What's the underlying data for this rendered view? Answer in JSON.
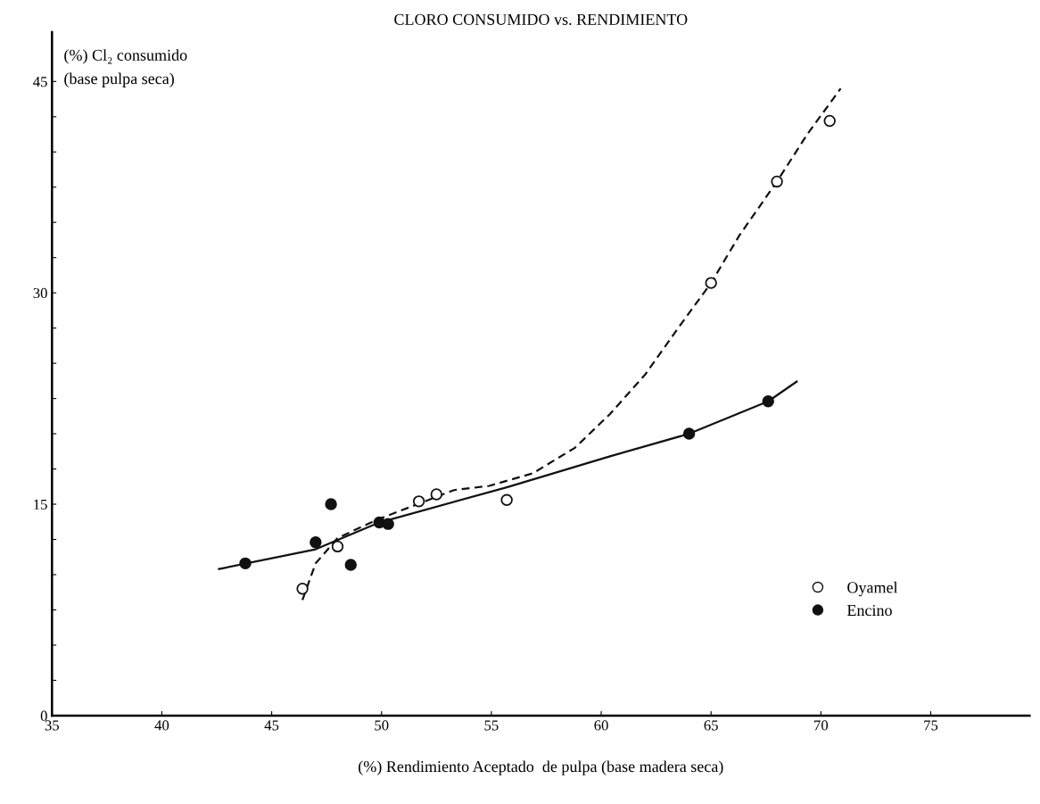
{
  "chart_data": {
    "type": "scatter",
    "title": "CLORO CONSUMIDO vs. RENDIMIENTO",
    "xlabel": "(%) Rendimiento Aceptado  de pulpa (base madera seca)",
    "ylabel": "(%) Cl₂ consumido\n(base pulpa seca)",
    "xlim": [
      35,
      79.5
    ],
    "xticks": [
      35,
      40,
      45,
      50,
      55,
      60,
      65,
      70,
      75
    ],
    "ylim": [
      0,
      48.5
    ],
    "yticks": [
      0,
      {
        "value": 2.5,
        "label": null
      },
      {
        "value": 5,
        "label": null
      },
      {
        "value": 7.5,
        "label": null
      },
      {
        "value": 10,
        "label": null
      },
      {
        "value": 12.5,
        "label": null
      },
      15,
      {
        "value": 17.5,
        "label": null
      },
      {
        "value": 20,
        "label": null
      },
      {
        "value": 22.5,
        "label": null
      },
      {
        "value": 25,
        "label": null
      },
      {
        "value": 27.5,
        "label": null
      },
      30,
      {
        "value": 32.5,
        "label": null
      },
      {
        "value": 35,
        "label": null
      },
      {
        "value": 37.5,
        "label": null
      },
      {
        "value": 40,
        "label": null
      },
      {
        "value": 42.5,
        "label": null
      },
      45
    ],
    "grid": false,
    "legend": "lower right",
    "marker": "circle",
    "series": [
      {
        "name": "Oyamel",
        "color": "#ffffff",
        "x": [
          46.4,
          48.0,
          51.7,
          52.5,
          55.7,
          65.0,
          68.0,
          70.4
        ],
        "values": [
          9.0,
          12.0,
          15.2,
          15.7,
          15.3,
          30.7,
          37.9,
          42.2
        ]
      },
      {
        "name": "Encino",
        "color": "#111111",
        "x": [
          43.8,
          47.0,
          47.7,
          48.6,
          49.9,
          50.3,
          64.0,
          67.6
        ],
        "values": [
          10.8,
          12.3,
          15.0,
          10.7,
          13.7,
          13.6,
          20.0,
          22.3
        ]
      },
      {
        "type": "line",
        "color": "#111111",
        "line_style": "dashed",
        "marker": "none",
        "x": [
          46.4,
          47.0,
          48.0,
          49.8,
          51.8,
          53.3,
          54.9,
          56.9,
          58.8,
          60.4,
          62.0,
          63.5,
          65.0,
          66.3,
          68.0,
          69.4,
          70.9
        ],
        "values": [
          8.2,
          10.8,
          12.6,
          13.9,
          15.1,
          16.0,
          16.3,
          17.2,
          19.0,
          21.4,
          24.2,
          27.5,
          30.7,
          34.1,
          37.9,
          41.3,
          44.5
        ]
      },
      {
        "type": "line",
        "color": "#111111",
        "line_style": "solid",
        "marker": "none",
        "x": [
          42.6,
          47.0,
          49.9,
          55.7,
          60.4,
          64.0,
          67.6,
          68.9
        ],
        "values": [
          10.4,
          11.8,
          13.7,
          16.2,
          18.4,
          20.0,
          22.3,
          23.7
        ]
      }
    ]
  }
}
